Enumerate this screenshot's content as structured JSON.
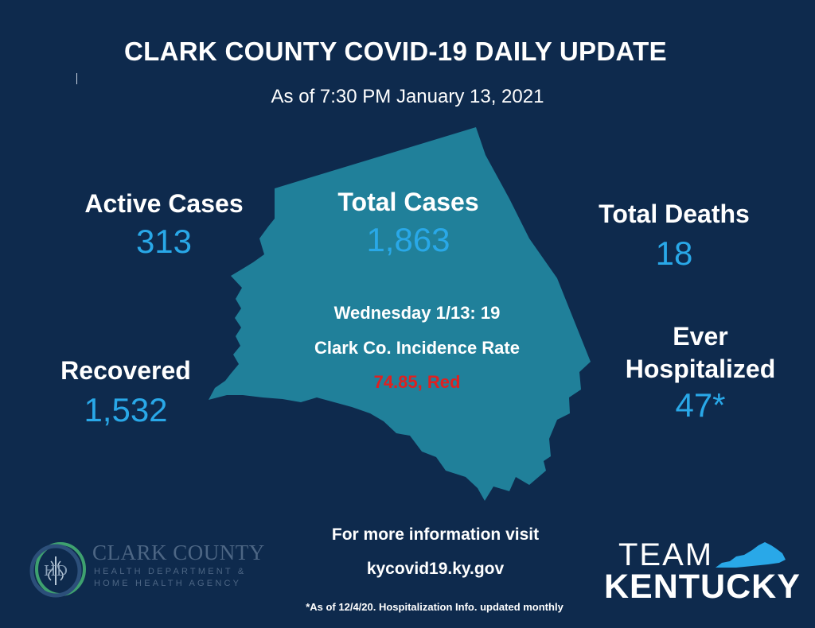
{
  "header": {
    "title": "CLARK COUNTY COVID-19 DAILY UPDATE",
    "subtitle": "As of 7:30 PM January 13, 2021"
  },
  "stats": {
    "active": {
      "label": "Active Cases",
      "value": "313"
    },
    "total": {
      "label": "Total Cases",
      "value": "1,863"
    },
    "deaths": {
      "label": "Total Deaths",
      "value": "18"
    },
    "recovered": {
      "label": "Recovered",
      "value": "1,532"
    },
    "hospitalized": {
      "label_line1": "Ever",
      "label_line2": "Hospitalized",
      "value": "47*"
    }
  },
  "daily": {
    "new_cases": "Wednesday 1/13: 19",
    "incidence_label": "Clark Co. Incidence Rate",
    "incidence_value": "74.85, Red"
  },
  "info": {
    "line1": "For more information visit",
    "line2": "kycovid19.ky.gov",
    "footnote": "*As of 12/4/20. Hospitalization Info. updated monthly"
  },
  "logos": {
    "health_dept": {
      "name": "CLARK COUNTY",
      "line2": "HEALTH DEPARTMENT &",
      "line3": "HOME HEALTH AGENCY",
      "initials": "HD"
    },
    "team_kentucky": {
      "line1": "TEAM",
      "line2": "KENTUCKY"
    }
  },
  "colors": {
    "background": "#0e2a4d",
    "map_fill": "#20809a",
    "value_blue": "#29a8e8",
    "alert_red": "#e02020"
  },
  "icons": [
    "county-map-icon",
    "health-department-seal-icon",
    "kentucky-state-icon"
  ]
}
